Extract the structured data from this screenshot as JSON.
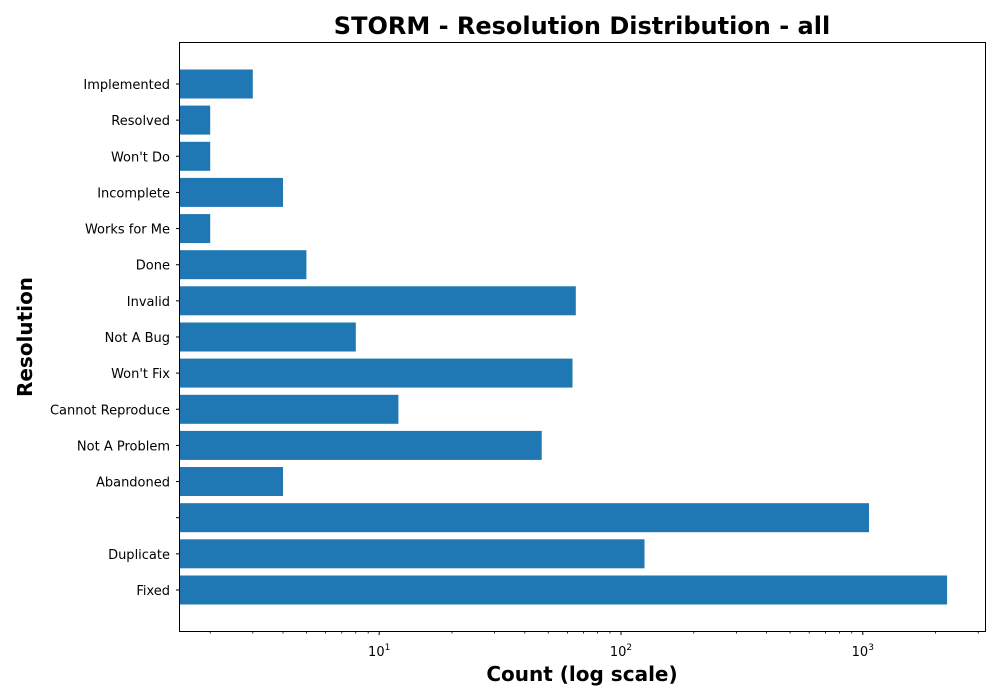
{
  "chart_data": {
    "type": "bar",
    "orientation": "horizontal",
    "title": "STORM - Resolution Distribution - all",
    "xlabel": "Count (log scale)",
    "ylabel": "Resolution",
    "x_scale": "log",
    "xlim": [
      1.5,
      3200
    ],
    "x_ticks": [
      {
        "value": 10,
        "base": "10",
        "exp": "1"
      },
      {
        "value": 100,
        "base": "10",
        "exp": "2"
      },
      {
        "value": 1000,
        "base": "10",
        "exp": "3"
      }
    ],
    "categories": [
      "Implemented",
      "Resolved",
      "Won't Do",
      "Incomplete",
      "Works for Me",
      "Done",
      "Invalid",
      "Not A Bug",
      "Won't Fix",
      "Cannot Reproduce",
      "Not A Problem",
      "Abandoned",
      "",
      "Duplicate",
      "Fixed"
    ],
    "values": [
      3,
      2,
      2,
      4,
      2,
      5,
      65,
      8,
      63,
      12,
      47,
      4,
      1060,
      125,
      2230
    ],
    "bar_color": "#1f77b4",
    "grid": false,
    "legend": "none"
  }
}
